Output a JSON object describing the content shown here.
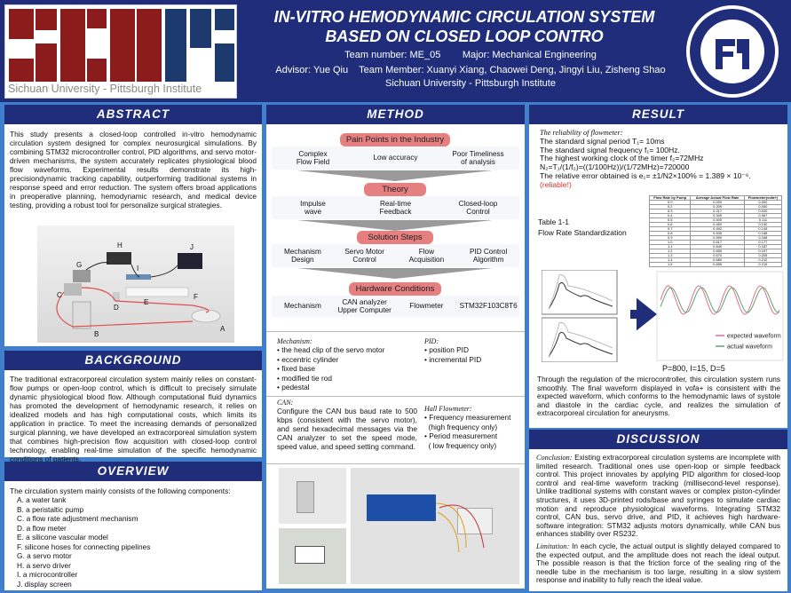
{
  "header": {
    "logo_text": "Sichuan University - Pittsburgh Institute",
    "title_line1": "IN-VITRO HEMODYNAMIC CIRCULATION SYSTEM",
    "title_line2": "BASED ON CLOSED LOOP CONTRO",
    "team_number": "Team number: ME_05",
    "major": "Major:  Mechanical Engineering",
    "advisor": "Advisor: Yue Qiu",
    "team_members": "Team Member: Xuanyi Xiang, Chaowei Deng, Jingyi Liu, Zisheng Shao",
    "institution": "Sichuan University - Pittsburgh Institute",
    "seal_text": "SICHUAN UNIVERSITY PITTSBURGH INSTITUTE"
  },
  "colors": {
    "navy": "#1f2d7b",
    "background_blue": "#3f7fcc",
    "pill_red": "#e68080",
    "logo_red": "#8b1c1c",
    "logo_blue": "#1c3a6e",
    "highlight_red": "#d93030"
  },
  "abstract": {
    "heading": "ABSTRACT",
    "text": "This study presents a closed-loop controlled in-vitro hemodynamic circulation system designed for complex neurosurgical simulations. By combining STM32 microcontroller control, PID algorithms, and servo motor-driven mechanisms, the system accurately replicates physiological blood flow waveforms. Experimental results demonstrate its high-precisiondynamic tracking capability, outperforming traditional systems in response speed and error reduction. The system offers broad applications in preoperative planning, hemodynamic research, and medical device testing, providing a robust tool for personalize surgical strategies.",
    "diagram_labels": [
      "A",
      "B",
      "C",
      "D",
      "E",
      "F",
      "G",
      "H",
      "I",
      "J"
    ]
  },
  "background": {
    "heading": "BACKGROUND",
    "text": "The traditional extracorporeal circulation system mainly relies on constant-flow pumps or open-loop control, which is difficult to precisely simulate dynamic physiological blood flow. Although computational fluid dynamics has promoted the development of hemodynamic research, it relies on idealized models and has high computational costs, which limits its application in practice. To meet the increasing demands of personalized surgical planning, we have developed an extracorporeal simulation system that combines high-precision flow acquisition with closed-loop control technology, enabling real-time simulation of the specific hemodynamic conditions of patients."
  },
  "overview": {
    "heading": "OVERVIEW",
    "intro": "The circulation system mainly consists of the following components:",
    "items": [
      "A.  a water tank",
      "B.  a peristaltic pump",
      "C.  a flow rate adjustment mechanism",
      "D.  a flow meter",
      "E.  a silicone vascular model",
      "F.   silicone hoses for connecting pipelines",
      "G.  a servo motor",
      "H.  a servo driver",
      "I.  a microcontroller",
      "J.  display screen"
    ]
  },
  "method": {
    "heading": "METHOD",
    "stages": [
      {
        "title": "Pain Points in the Industry",
        "items": [
          "Complex\nFlow Field",
          "Low accuracy",
          "Poor Timeliness\nof analysis"
        ]
      },
      {
        "title": "Theory",
        "items": [
          "Impulse\nwave",
          "Real-time\nFeedback",
          "Closed-loop\nControl"
        ]
      },
      {
        "title": "Solution  Steps",
        "items": [
          "Mechanism\nDesign",
          "Servo Motor\nControl",
          "Flow\nAcquisition",
          "PID Control\nAlgorithm"
        ]
      },
      {
        "title": "Hardware Conditions",
        "items": [
          "Mechanism",
          "CAN analyzer\nUpper Computer",
          "Flowmeter",
          "STM32F103C8T6"
        ]
      }
    ],
    "mechanism": {
      "title": "Mechanism:",
      "items": [
        "• the head clip of the servo motor",
        "• eccentric cylinder",
        "• fixed base",
        "• modified tie rod",
        "• pedestal"
      ]
    },
    "pid": {
      "title": "PID:",
      "items": [
        "• position PID",
        "• incremental PID"
      ]
    },
    "can": {
      "title": "CAN:",
      "text": "Configure the CAN bus baud rate to 500 kbps (consistent with the servo motor), and send hexadecimal messages via the CAN analyzer to set the speed mode, speed value, and speed setting command."
    },
    "hall": {
      "title": "Hall Flowmeter:",
      "items": [
        "• Frequency measurement\n  (high frequency only)",
        "• Period measurement\n  ( low frequency only)"
      ]
    }
  },
  "result": {
    "heading": "RESULT",
    "reliability_title": "The reliability of flowmeter:",
    "lines": [
      "The standard signal period T₁= 10ms",
      "The standard signal frequency f₁= 100Hz.",
      "The highest working clock of the timer f₂=72MHz",
      "N₂=T₁/(1/f₂)=((1/100Hz))/(1/72MHz)=720000"
    ],
    "error_line": "The relative error obtained is e₁= ±1/N2×100% = 1.389 × 10⁻⁶.",
    "reliable": "(reliable!)",
    "table_caption_1": "Table 1-1",
    "table_caption_2": "Flow Rate Standardization",
    "table": {
      "headers": [
        "Flow Rate by Pump",
        "Average Actual Flow Rate",
        "Flowmeter(vofa+)"
      ],
      "rows": [
        [
          "0.0",
          "0.000",
          "0.000"
        ],
        [
          "0.2",
          "0.209",
          "0.000"
        ],
        [
          "0.3",
          "0.217",
          "0.020"
        ],
        [
          "0.4",
          "0.340",
          "0.067"
        ],
        [
          "0.5",
          "0.400",
          "0.111"
        ],
        [
          "0.6",
          "0.450",
          "0.130"
        ],
        [
          "0.7",
          "0.492",
          "0.145"
        ],
        [
          "0.8",
          "0.530",
          "0.158"
        ],
        [
          "0.9",
          "0.590",
          "0.168"
        ],
        [
          "1.0",
          "0.617",
          "0.177"
        ],
        [
          "1.1",
          "0.640",
          "0.187"
        ],
        [
          "1.2",
          "0.650",
          "0.197"
        ],
        [
          "1.3",
          "0.670",
          "0.205"
        ],
        [
          "1.4",
          "0.680",
          "0.212"
        ],
        [
          "1.5",
          "0.695",
          "0.219"
        ]
      ]
    },
    "legend": [
      "expected waveform",
      "actual waveform"
    ],
    "pid_params": "P=800, I=15, D=5",
    "summary": "Through the regulation of the microcontroller, this circulation system runs smoothly. The final waveform displayed in vofa+ is consistent with the expected waveform, which conforms to the hemodynamic laws of systole and diastole in the cardiac cycle, and realizes the simulation of extracorporeal circulation for aneurysms."
  },
  "discussion": {
    "heading": "DISCUSSION",
    "conclusion_label": "Conclusion:",
    "conclusion": " Existing extracorporeal circulation systems are incomplete with limited research. Traditional ones use open-loop or simple feedback control. This project innovates by applying PID algorithm for closed-loop control and real-time waveform tracking (millisecond-level response). Unlike traditional systems with constant waves or complex piston-cylinder structures, it uses 3D-printed rods/base and syringes to simulate cardiac motion and reproduce physiological waveforms. Integrating STM32 control, CAN bus, servo drive, and PID, it achieves high hardware-software integration: STM32 adjusts motors dynamically, while CAN bus enhances stability over RS232.",
    "limitation_label": "Limitation:",
    "limitation": " In each cycle, the actual output is slightly delayed compared to the expected output, and the amplitude does not reach the ideal output. The possible reason is that the friction force of the sealing ring of the needle tube in the mechanism is too large, resulting in a slow system response and inability to fully reach the ideal value."
  }
}
